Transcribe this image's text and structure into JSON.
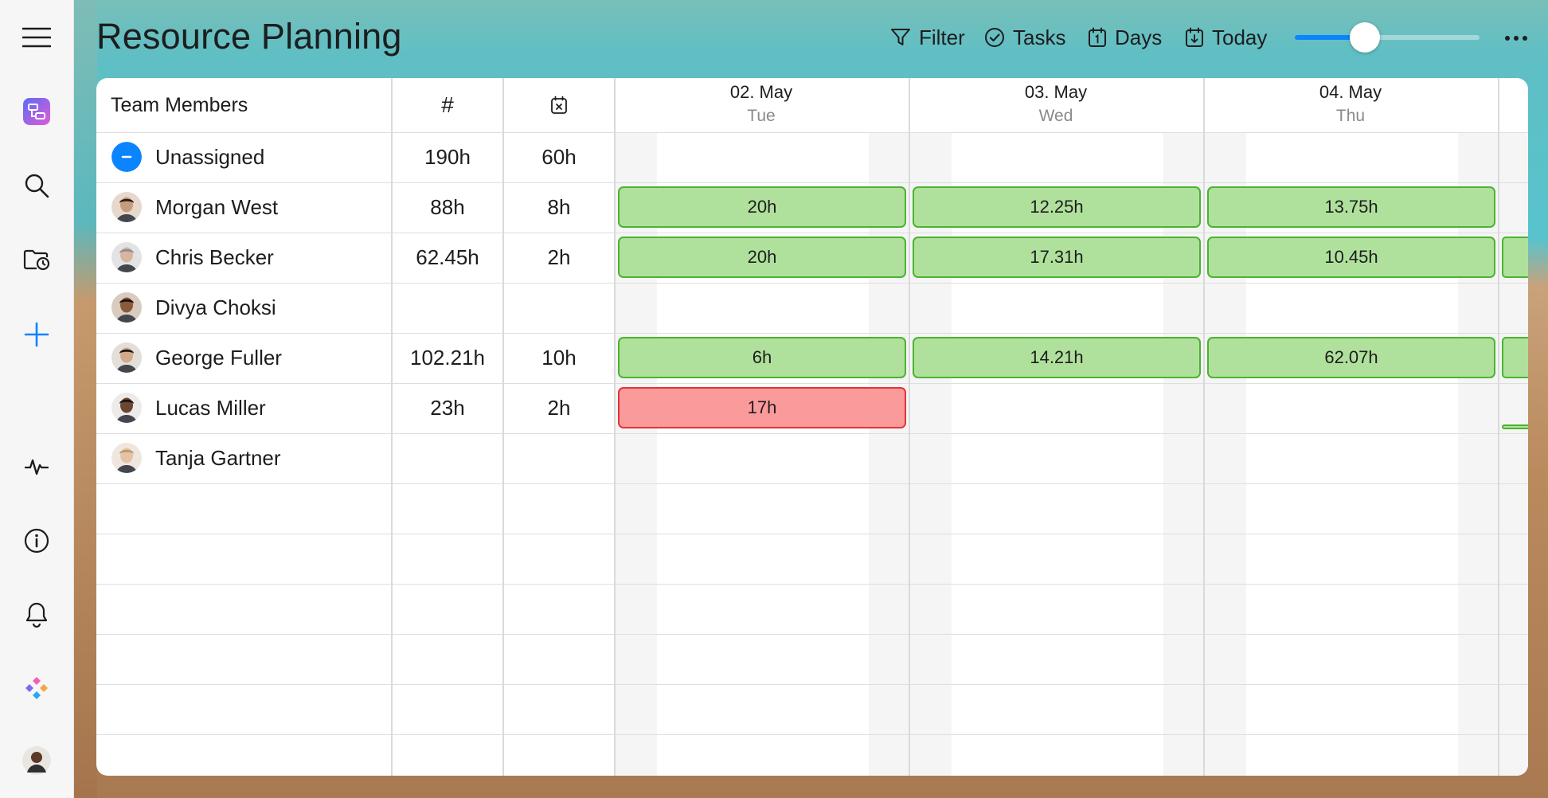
{
  "app": {
    "title": "Resource Planning"
  },
  "sidebar": {
    "items": [
      {
        "name": "menu-icon"
      },
      {
        "name": "planner-app-icon"
      },
      {
        "name": "search-icon"
      },
      {
        "name": "folder-clock-icon"
      },
      {
        "name": "plus-icon"
      },
      {
        "name": "activity-icon"
      },
      {
        "name": "info-icon"
      },
      {
        "name": "bell-icon"
      },
      {
        "name": "diamonds-logo-icon"
      },
      {
        "name": "user-avatar"
      }
    ]
  },
  "toolbar": {
    "filter_label": "Filter",
    "tasks_label": "Tasks",
    "days_label": "Days",
    "today_label": "Today",
    "zoom_level": 0.38
  },
  "grid": {
    "columns": {
      "members": "Team Members",
      "total": "#",
      "absence_icon": "calendar-x-icon"
    },
    "days": [
      {
        "date": "02. May",
        "weekday": "Tue"
      },
      {
        "date": "03. May",
        "weekday": "Wed"
      },
      {
        "date": "04. May",
        "weekday": "Thu"
      }
    ],
    "members": [
      {
        "name": "Unassigned",
        "total": "190h",
        "absence": "60h",
        "avatar": "unassigned-icon",
        "bars": []
      },
      {
        "name": "Morgan West",
        "total": "88h",
        "absence": "8h",
        "avatar": "avatar",
        "bars": [
          {
            "day": 0,
            "label": "20h",
            "status": "ok"
          },
          {
            "day": 1,
            "label": "12.25h",
            "status": "ok"
          },
          {
            "day": 2,
            "label": "13.75h",
            "status": "ok"
          }
        ]
      },
      {
        "name": "Chris Becker",
        "total": "62.45h",
        "absence": "2h",
        "avatar": "avatar",
        "bars": [
          {
            "day": 0,
            "label": "20h",
            "status": "ok"
          },
          {
            "day": 1,
            "label": "17.31h",
            "status": "ok"
          },
          {
            "day": 2,
            "label": "10.45h",
            "status": "ok"
          }
        ]
      },
      {
        "name": "Divya Choksi",
        "total": "",
        "absence": "",
        "avatar": "avatar",
        "bars": []
      },
      {
        "name": "George Fuller",
        "total": "102.21h",
        "absence": "10h",
        "avatar": "avatar",
        "bars": [
          {
            "day": 0,
            "label": "6h",
            "status": "ok"
          },
          {
            "day": 1,
            "label": "14.21h",
            "status": "ok"
          },
          {
            "day": 2,
            "label": "62.07h",
            "status": "ok"
          }
        ]
      },
      {
        "name": "Lucas Miller",
        "total": "23h",
        "absence": "2h",
        "avatar": "avatar",
        "bars": [
          {
            "day": 0,
            "label": "17h",
            "status": "over"
          }
        ]
      },
      {
        "name": "Tanja Gartner",
        "total": "",
        "absence": "",
        "avatar": "avatar",
        "bars": []
      }
    ]
  },
  "colors": {
    "ok_fill": "#b0e19c",
    "ok_border": "#4bb330",
    "over_fill": "#fa9a9a",
    "over_border": "#e0353a",
    "accent": "#0a84ff"
  }
}
